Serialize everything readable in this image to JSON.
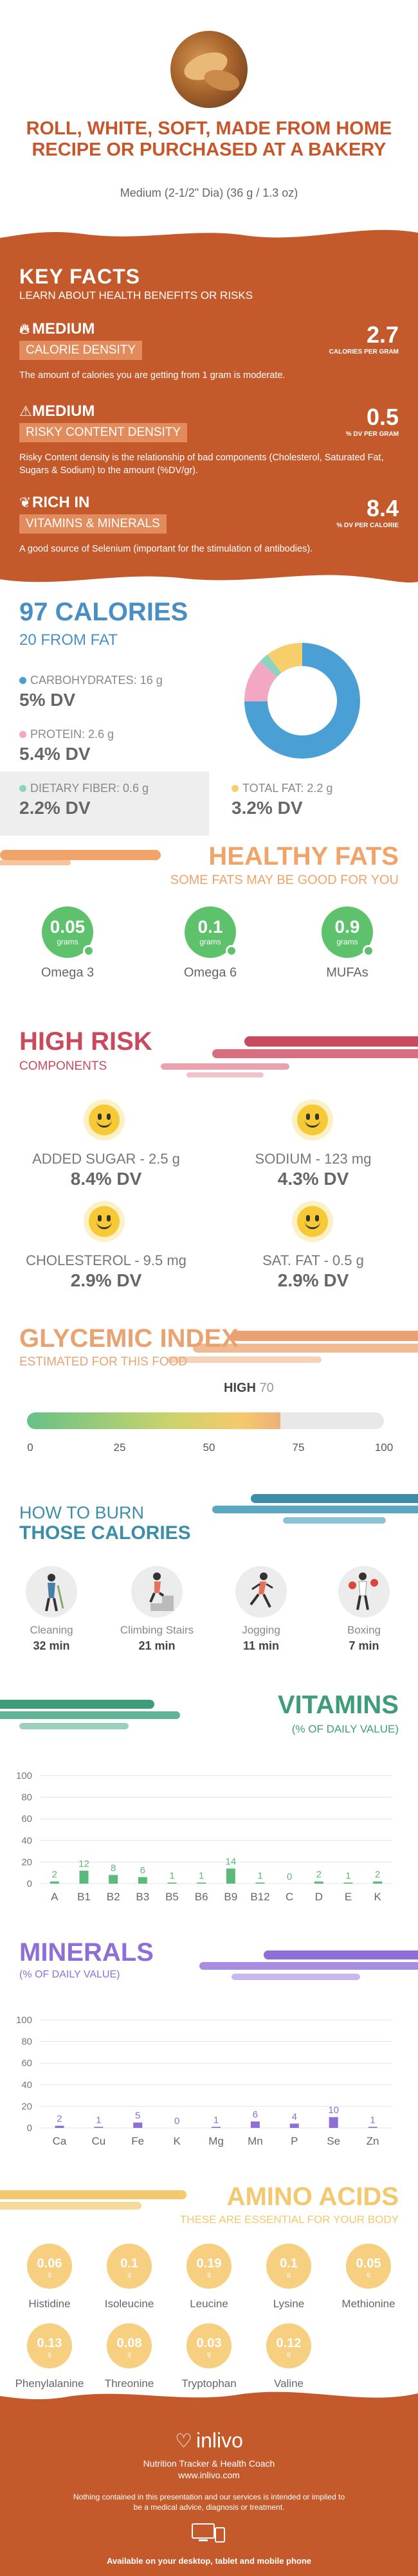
{
  "header": {
    "title": "ROLL, WHITE, SOFT, MADE FROM HOME RECIPE OR PURCHASED AT A BAKERY",
    "serving": "Medium (2-1/2\" Dia) (36 g / 1.3 oz)"
  },
  "key_facts": {
    "title": "KEY FACTS",
    "subtitle": "LEARN ABOUT HEALTH BENEFITS OR RISKS",
    "items": [
      {
        "level": "MEDIUM",
        "tag": "CALORIE DENSITY",
        "value": "2.7",
        "unit": "CALORIES PER GRAM",
        "desc": "The amount of calories you are getting from 1 gram is moderate."
      },
      {
        "level": "MEDIUM",
        "tag": "RISKY CONTENT DENSITY",
        "value": "0.5",
        "unit": "% DV PER GRAM",
        "desc": "Risky Content density is the relationship of bad components (Cholesterol, Saturated Fat, Sugars & Sodium) to the amount (%DV/gr)."
      },
      {
        "level": "RICH IN",
        "tag": "VITAMINS & MINERALS",
        "value": "8.4",
        "unit": "% DV PER CALORIE",
        "desc": "A good source of Selenium (important for the stimulation of antibodies)."
      }
    ]
  },
  "calories": {
    "total": "97 CALORIES",
    "from_fat": "20 FROM FAT",
    "macros": [
      {
        "label": "CARBOHYDRATES: 16 g",
        "dv": "5% DV",
        "color": "#4a9fd4",
        "grams": 16
      },
      {
        "label": "PROTEIN: 2.6 g",
        "dv": "5.4% DV",
        "color": "#f4a7c3",
        "grams": 2.6
      },
      {
        "label": "DIETARY FIBER: 0.6 g",
        "dv": "2.2% DV",
        "color": "#8ed3c0",
        "grams": 0.6
      },
      {
        "label": "TOTAL FAT: 2.2 g",
        "dv": "3.2% DV",
        "color": "#f6cf6b",
        "grams": 2.2
      }
    ]
  },
  "healthy_fats": {
    "title": "HEALTHY FATS",
    "subtitle": "SOME FATS MAY BE GOOD FOR YOU",
    "items": [
      {
        "value": "0.05",
        "unit": "grams",
        "label": "Omega 3"
      },
      {
        "value": "0.1",
        "unit": "grams",
        "label": "Omega 6"
      },
      {
        "value": "0.9",
        "unit": "grams",
        "label": "MUFAs"
      }
    ]
  },
  "high_risk": {
    "title": "HIGH RISK",
    "subtitle": "COMPONENTS",
    "items": [
      {
        "label": "ADDED SUGAR - 2.5 g",
        "dv": "8.4% DV"
      },
      {
        "label": "SODIUM - 123 mg",
        "dv": "4.3% DV"
      },
      {
        "label": "CHOLESTEROL - 9.5 mg",
        "dv": "2.9% DV"
      },
      {
        "label": "SAT. FAT - 0.5 g",
        "dv": "2.9% DV"
      }
    ]
  },
  "glycemic": {
    "title": "GLYCEMIC INDEX",
    "subtitle": "ESTIMATED FOR THIS FOOD",
    "level": "HIGH",
    "value": "70",
    "ticks": [
      "0",
      "25",
      "50",
      "75",
      "100"
    ]
  },
  "burn": {
    "title1": "HOW TO BURN",
    "title2": "THOSE CALORIES",
    "activities": [
      {
        "label": "Cleaning",
        "time": "32 min",
        "icon": "cleaning-icon"
      },
      {
        "label": "Climbing Stairs",
        "time": "21 min",
        "icon": "stairs-icon"
      },
      {
        "label": "Jogging",
        "time": "11 min",
        "icon": "jogging-icon"
      },
      {
        "label": "Boxing",
        "time": "7 min",
        "icon": "boxing-icon"
      }
    ]
  },
  "vitamins": {
    "title": "VITAMINS",
    "subtitle": "(% OF DAILY VALUE)"
  },
  "minerals": {
    "title": "MINERALS",
    "subtitle": "(% OF DAILY VALUE)"
  },
  "chart_data": [
    {
      "type": "bar",
      "name": "vitamins",
      "categories": [
        "A",
        "B1",
        "B2",
        "B3",
        "B5",
        "B6",
        "B9",
        "B12",
        "C",
        "D",
        "E",
        "K"
      ],
      "values": [
        2,
        12,
        8,
        6,
        1,
        1,
        14,
        1,
        0,
        2,
        1,
        2
      ],
      "ylim": [
        0,
        100
      ],
      "yticks": [
        "0",
        "20",
        "40",
        "60",
        "80",
        "100"
      ],
      "color": "#5cb979"
    },
    {
      "type": "bar",
      "name": "minerals",
      "categories": [
        "Ca",
        "Cu",
        "Fe",
        "K",
        "Mg",
        "Mn",
        "P",
        "Se",
        "Zn"
      ],
      "values": [
        2,
        1,
        5,
        0,
        1,
        6,
        4,
        10,
        1
      ],
      "ylim": [
        0,
        100
      ],
      "yticks": [
        "0",
        "20",
        "40",
        "60",
        "80",
        "100"
      ],
      "color": "#8e6fd6"
    }
  ],
  "amino": {
    "title": "AMINO ACIDS",
    "subtitle": "THESE ARE ESSENTIAL FOR YOUR BODY",
    "items": [
      {
        "value": "0.06",
        "unit": "g",
        "label": "Histidine"
      },
      {
        "value": "0.1",
        "unit": "g",
        "label": "Isoleucine"
      },
      {
        "value": "0.19",
        "unit": "g",
        "label": "Leucine"
      },
      {
        "value": "0.1",
        "unit": "g",
        "label": "Lysine"
      },
      {
        "value": "0.05",
        "unit": "g",
        "label": "Methionine"
      },
      {
        "value": "0.13",
        "unit": "g",
        "label": "Phenylalanine"
      },
      {
        "value": "0.08",
        "unit": "g",
        "label": "Threonine"
      },
      {
        "value": "0.03",
        "unit": "g",
        "label": "Tryptophan"
      },
      {
        "value": "0.12",
        "unit": "g",
        "label": "Valine"
      }
    ]
  },
  "footer": {
    "brand": "inlivo",
    "tagline": "Nutrition Tracker & Health Coach",
    "url": "www.inlivo.com",
    "disclaimer": "Nothing contained in this presentation and our services is intended or implied to be a medical advice, diagnosis or treatment.",
    "available": "Available on your desktop, tablet and mobile phone"
  }
}
